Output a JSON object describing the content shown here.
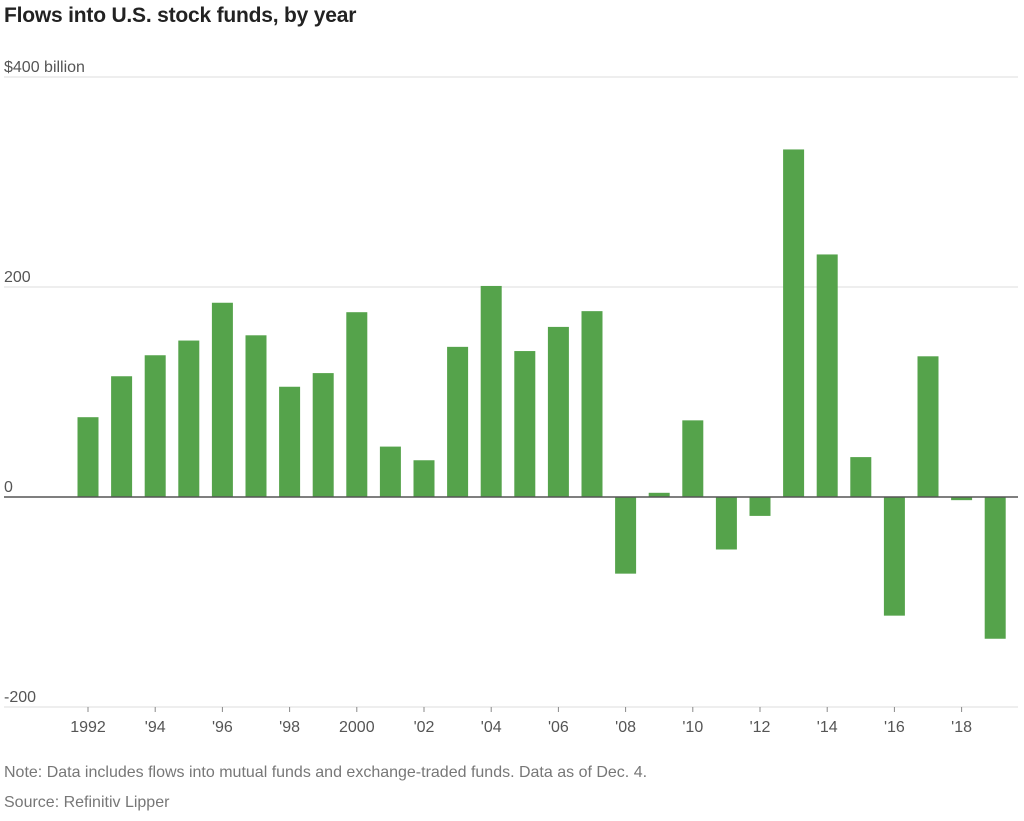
{
  "title": "Flows into U.S. stock funds, by year",
  "note": "Note: Data includes flows into mutual funds and exchange-traded funds. Data as of Dec. 4.",
  "source": "Source: Refinitiv Lipper",
  "colors": {
    "bar": "#55a34b",
    "grid": "#dddddd",
    "zero_line": "#555555",
    "tick_text": "#555555"
  },
  "chart_data": {
    "type": "bar",
    "title": "Flows into U.S. stock funds, by year",
    "ylabel": "",
    "xlabel": "",
    "ylim": [
      -200,
      400
    ],
    "y_ticks": [
      {
        "value": 400,
        "label": "$400 billion"
      },
      {
        "value": 200,
        "label": "200"
      },
      {
        "value": 0,
        "label": "0"
      },
      {
        "value": -200,
        "label": "-200"
      }
    ],
    "categories": [
      "1992",
      "1993",
      "1994",
      "1995",
      "1996",
      "1997",
      "1998",
      "1999",
      "2000",
      "2001",
      "2002",
      "2003",
      "2004",
      "2005",
      "2006",
      "2007",
      "2008",
      "2009",
      "2010",
      "2011",
      "2012",
      "2013",
      "2014",
      "2015",
      "2016",
      "2017",
      "2018",
      "2019"
    ],
    "values": [
      76,
      115,
      135,
      149,
      185,
      154,
      105,
      118,
      176,
      48,
      35,
      143,
      201,
      139,
      162,
      177,
      -73,
      4,
      73,
      -50,
      -18,
      331,
      231,
      38,
      -113,
      134,
      -3,
      -135
    ],
    "x_tick_labels": [
      {
        "category": "1992",
        "label": "1992"
      },
      {
        "category": "1994",
        "label": "'94"
      },
      {
        "category": "1996",
        "label": "'96"
      },
      {
        "category": "1998",
        "label": "'98"
      },
      {
        "category": "2000",
        "label": "2000"
      },
      {
        "category": "2002",
        "label": "'02"
      },
      {
        "category": "2004",
        "label": "'04"
      },
      {
        "category": "2006",
        "label": "'06"
      },
      {
        "category": "2008",
        "label": "'08"
      },
      {
        "category": "2010",
        "label": "'10"
      },
      {
        "category": "2012",
        "label": "'12"
      },
      {
        "category": "2014",
        "label": "'14"
      },
      {
        "category": "2016",
        "label": "'16"
      },
      {
        "category": "2018",
        "label": "'18"
      }
    ],
    "grid": true,
    "legend": "none"
  }
}
